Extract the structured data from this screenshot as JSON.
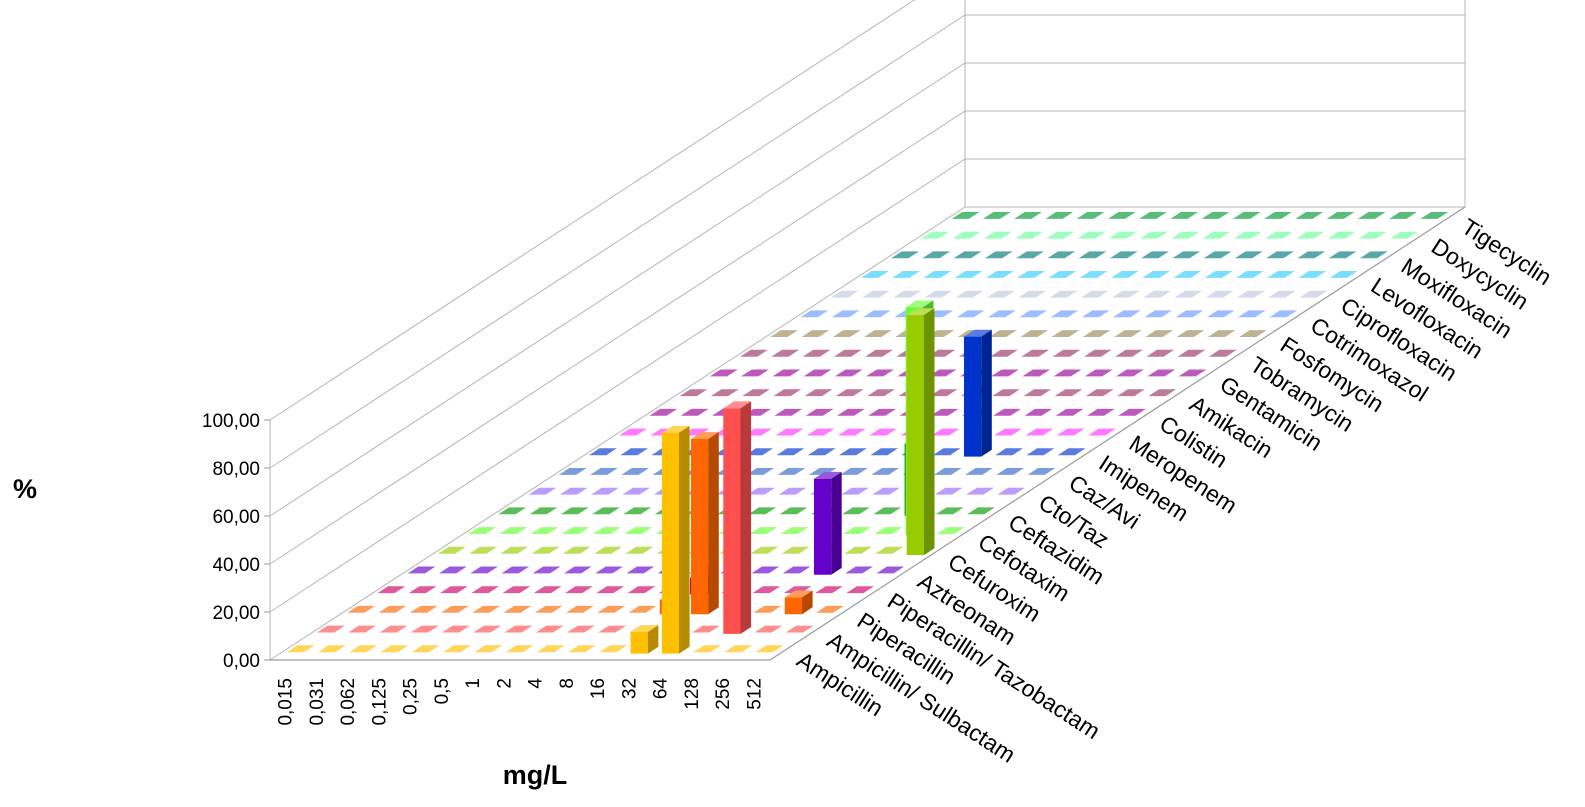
{
  "chart_data": {
    "type": "bar3d",
    "ylabel": "%",
    "xlabel": "mg/L",
    "ylim": [
      0,
      100
    ],
    "yticks": [
      "0,00",
      "20,00",
      "40,00",
      "60,00",
      "80,00",
      "100,00"
    ],
    "categories": [
      "0,015",
      "0,031",
      "0,062",
      "0,125",
      "0,25",
      "0,5",
      "1",
      "2",
      "4",
      "8",
      "16",
      "32",
      "64",
      "128",
      "256",
      "512"
    ],
    "series": [
      {
        "name": "Ampicillin",
        "color": "#FFC000",
        "values": [
          0,
          0,
          0,
          0,
          0,
          0,
          0,
          0,
          0,
          0,
          0,
          9,
          92,
          0,
          0,
          0
        ]
      },
      {
        "name": "Ampicillin/ Sulbactam",
        "color": "#FF5050",
        "values": [
          0,
          0,
          0,
          0,
          0,
          0,
          0,
          0,
          0,
          0,
          0,
          0,
          0,
          94,
          0,
          0
        ]
      },
      {
        "name": "Piperacillin",
        "color": "#FF6600",
        "values": [
          0,
          0,
          0,
          0,
          0,
          0,
          0,
          0,
          0,
          0,
          6,
          73,
          0,
          0,
          7,
          0
        ]
      },
      {
        "name": "Piperacillin/ Tazobactam",
        "color": "#CC0066",
        "values": [
          0,
          0,
          0,
          0,
          0,
          0,
          0,
          0,
          0,
          0,
          7,
          0,
          0,
          0,
          0,
          0
        ]
      },
      {
        "name": "Aztreonam",
        "color": "#6600CC",
        "values": [
          0,
          0,
          0,
          0,
          0,
          0,
          0,
          0,
          0,
          0,
          0,
          0,
          0,
          40,
          0,
          0
        ]
      },
      {
        "name": "Cefuroxim",
        "color": "#99CC00",
        "values": [
          0,
          0,
          0,
          0,
          0,
          0,
          0,
          0,
          0,
          0,
          0,
          0,
          0,
          0,
          0,
          100
        ]
      },
      {
        "name": "Cefotaxim",
        "color": "#66FF33",
        "values": [
          0,
          0,
          0,
          0,
          0,
          0,
          0,
          0,
          0,
          0,
          0,
          0,
          0,
          0,
          95,
          0
        ]
      },
      {
        "name": "Ceftazidim",
        "color": "#009900",
        "values": [
          0,
          0,
          0,
          0,
          0,
          0,
          0,
          0,
          0,
          0,
          0,
          0,
          0,
          30,
          0,
          0
        ]
      },
      {
        "name": "Cto/Taz",
        "color": "#9966FF",
        "values": [
          0,
          0,
          0,
          0,
          0,
          0,
          0,
          0,
          0,
          0,
          0,
          0,
          0,
          0,
          0,
          0
        ]
      },
      {
        "name": "Caz/Avi",
        "color": "#3366CC",
        "values": [
          0,
          0,
          0,
          0,
          0,
          0,
          0,
          0,
          0,
          0,
          0,
          0,
          0,
          0,
          0,
          0
        ]
      },
      {
        "name": "Imipenem",
        "color": "#0033CC",
        "values": [
          0,
          0,
          0,
          0,
          0,
          0,
          0,
          0,
          0,
          0,
          0,
          0,
          50,
          0,
          0,
          0
        ]
      },
      {
        "name": "Meropenem",
        "color": "#FF33FF",
        "values": [
          0,
          0,
          0,
          0,
          0,
          0,
          0,
          0,
          0,
          0,
          0,
          0,
          0,
          0,
          0,
          0
        ]
      },
      {
        "name": "Colistin",
        "color": "#990099",
        "values": [
          0,
          0,
          0,
          0,
          0,
          0,
          0,
          0,
          0,
          0,
          0,
          0,
          0,
          0,
          0,
          0
        ]
      },
      {
        "name": "Amikacin",
        "color": "#993366",
        "values": [
          0,
          0,
          0,
          0,
          0,
          0,
          0,
          0,
          0,
          0,
          0,
          0,
          0,
          0,
          0,
          0
        ]
      },
      {
        "name": "Gentamicin",
        "color": "#990099",
        "values": [
          0,
          0,
          0,
          0,
          0,
          0,
          0,
          0,
          0,
          0,
          0,
          0,
          0,
          0,
          0,
          0
        ]
      },
      {
        "name": "Tobramycin",
        "color": "#993366",
        "values": [
          0,
          0,
          0,
          0,
          0,
          0,
          0,
          0,
          0,
          0,
          0,
          0,
          0,
          0,
          0,
          0
        ]
      },
      {
        "name": "Fosfomycin",
        "color": "#998855",
        "values": [
          0,
          0,
          0,
          0,
          0,
          0,
          0,
          0,
          0,
          0,
          0,
          0,
          0,
          0,
          0,
          0
        ]
      },
      {
        "name": "Cotrimoxazol",
        "color": "#6699FF",
        "values": [
          0,
          0,
          0,
          0,
          0,
          0,
          0,
          0,
          0,
          0,
          0,
          0,
          0,
          0,
          0,
          0
        ]
      },
      {
        "name": "Ciprofloxacin",
        "color": "#C0C8E0",
        "values": [
          0,
          0,
          0,
          0,
          0,
          0,
          0,
          0,
          0,
          0,
          0,
          0,
          0,
          0,
          0,
          0
        ]
      },
      {
        "name": "Levofloxacin",
        "color": "#33CCFF",
        "values": [
          0,
          0,
          0,
          0,
          0,
          0,
          0,
          0,
          0,
          0,
          0,
          0,
          0,
          0,
          0,
          0
        ]
      },
      {
        "name": "Moxifloxacin",
        "color": "#007777",
        "values": [
          0,
          0,
          0,
          0,
          0,
          0,
          0,
          0,
          0,
          0,
          0,
          0,
          0,
          0,
          0,
          0
        ]
      },
      {
        "name": "Doxycyclin",
        "color": "#66FF99",
        "values": [
          0,
          0,
          0,
          0,
          0,
          0,
          0,
          0,
          0,
          0,
          0,
          0,
          0,
          0,
          0,
          0
        ]
      },
      {
        "name": "Tigecyclin",
        "color": "#009933",
        "values": [
          0,
          0,
          0,
          0,
          0,
          0,
          0,
          0,
          0,
          0,
          0,
          0,
          0,
          0,
          0,
          0
        ]
      }
    ]
  }
}
